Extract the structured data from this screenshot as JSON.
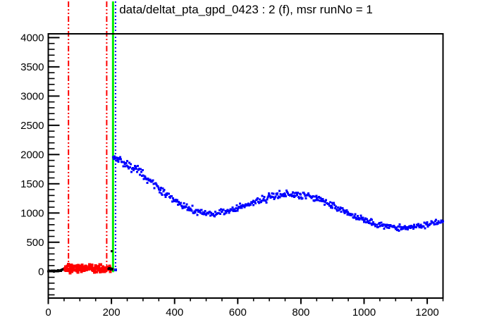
{
  "title": "data/deltat_pta_gpd_0423 : 2 (f), msr runNo = 1",
  "colors": {
    "frame": "#000000",
    "histogram_raw": "#000000",
    "background_window": "#ff0000",
    "good_data": "#0000ff",
    "t0_line": "#00ee00",
    "range_lines": "#ff0000",
    "first_good_bin_line": "#0000ff"
  },
  "chart_data": {
    "type": "scatter",
    "title": "data/deltat_pta_gpd_0423 : 2 (f), msr runNo = 1",
    "xlabel": "",
    "ylabel": "",
    "grid": false,
    "legend": false,
    "x_axis": {
      "min": 0,
      "max": 1250,
      "major_ticks": [
        0,
        200,
        400,
        600,
        800,
        1000,
        1200
      ],
      "tick_labels": [
        "0",
        "200",
        "400",
        "600",
        "800",
        "1000",
        "1200"
      ],
      "minor_tick_step": 50
    },
    "y_axis": {
      "min": -455,
      "max": 4065,
      "major_ticks": [
        0,
        500,
        1000,
        1500,
        2000,
        2500,
        3000,
        3500,
        4000
      ],
      "tick_labels": [
        "0",
        "500",
        "1000",
        "1500",
        "2000",
        "2500",
        "3000",
        "3500",
        "4000"
      ],
      "minor_tick_step": 100
    },
    "vlines": [
      {
        "name": "background-range-start-line",
        "x": 64,
        "color": "#ff0000",
        "width": 2,
        "dash": "8 3 2 3 2 3"
      },
      {
        "name": "background-range-end-line",
        "x": 185,
        "color": "#ff0000",
        "width": 2,
        "dash": "8 3 2 3 2 3"
      },
      {
        "name": "t0-line",
        "x": 205,
        "color": "#00ee00",
        "width": 3,
        "dash": ""
      },
      {
        "name": "first-good-bin-line",
        "x": 213,
        "color": "#0000ff",
        "width": 2,
        "dash": "2 3"
      }
    ],
    "series": [
      {
        "name": "raw-histogram-pre-background",
        "color": "#000000",
        "marker_px": 3,
        "step": 1.2,
        "noise_sigma": 5,
        "seed": 7,
        "anchors": [
          [
            0,
            8
          ],
          [
            12,
            8
          ],
          [
            24,
            9
          ],
          [
            34,
            11
          ],
          [
            40,
            18
          ],
          [
            46,
            35
          ],
          [
            52,
            46
          ]
        ]
      },
      {
        "name": "background-window-data",
        "color": "#ff0000",
        "marker_px": 4,
        "step": 1.1,
        "noise_sigma": 30,
        "seed": 13,
        "anchors": [
          [
            53,
            55
          ],
          [
            75,
            57
          ],
          [
            100,
            53
          ],
          [
            125,
            56
          ],
          [
            150,
            54
          ],
          [
            175,
            57
          ],
          [
            196,
            54
          ]
        ]
      },
      {
        "name": "raw-histogram-pre-t0",
        "color": "#000000",
        "marker_px": 3,
        "step": 1.2,
        "noise_sigma": 5,
        "seed": 21,
        "anchors": [
          [
            191,
            45
          ],
          [
            197,
            46
          ],
          [
            203,
            44
          ]
        ]
      },
      {
        "name": "stray-black-point",
        "color": "#000000",
        "marker_px": 3,
        "step": 99,
        "noise_sigma": 0,
        "seed": 3,
        "anchors": [
          [
            201,
            345
          ],
          [
            201,
            345
          ]
        ]
      },
      {
        "name": "first-good-bin-point",
        "color": "#0000ff",
        "marker_px": 4,
        "step": 99,
        "noise_sigma": 0,
        "seed": 1,
        "anchors": [
          [
            213,
            25
          ],
          [
            213,
            25
          ]
        ]
      },
      {
        "name": "good-data-histogram",
        "color": "#0000ff",
        "marker_px": 3,
        "step": 2.2,
        "noise": "sqrt",
        "noise_scale": 0.85,
        "seed": 42,
        "anchors": [
          [
            205,
            1949
          ],
          [
            225,
            1909
          ],
          [
            250,
            1838
          ],
          [
            275,
            1748
          ],
          [
            300,
            1644
          ],
          [
            325,
            1533
          ],
          [
            350,
            1420
          ],
          [
            375,
            1311
          ],
          [
            400,
            1213
          ],
          [
            425,
            1128
          ],
          [
            450,
            1064
          ],
          [
            475,
            1018
          ],
          [
            500,
            995
          ],
          [
            525,
            992
          ],
          [
            550,
            1008
          ],
          [
            575,
            1038
          ],
          [
            600,
            1081
          ],
          [
            625,
            1130
          ],
          [
            650,
            1181
          ],
          [
            675,
            1230
          ],
          [
            700,
            1271
          ],
          [
            725,
            1302
          ],
          [
            750,
            1320
          ],
          [
            775,
            1323
          ],
          [
            800,
            1310
          ],
          [
            825,
            1283
          ],
          [
            850,
            1242
          ],
          [
            875,
            1190
          ],
          [
            900,
            1129
          ],
          [
            925,
            1065
          ],
          [
            950,
            999
          ],
          [
            975,
            936
          ],
          [
            1000,
            879
          ],
          [
            1025,
            831
          ],
          [
            1050,
            793
          ],
          [
            1075,
            767
          ],
          [
            1100,
            753
          ],
          [
            1125,
            751
          ],
          [
            1150,
            761
          ],
          [
            1175,
            778
          ],
          [
            1200,
            803
          ],
          [
            1225,
            831
          ],
          [
            1250,
            861
          ]
        ]
      }
    ]
  }
}
